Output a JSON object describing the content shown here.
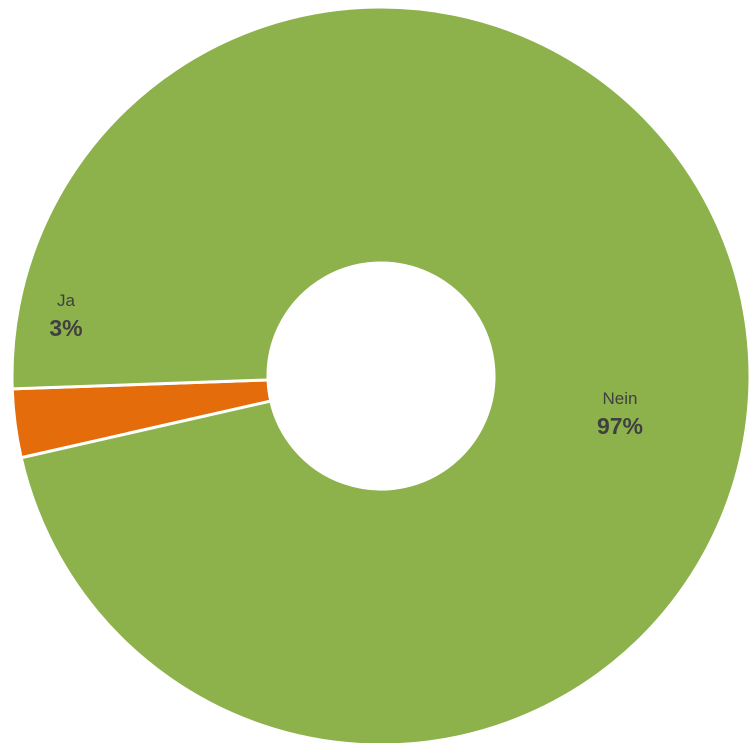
{
  "chart_data": {
    "type": "pie",
    "donut": true,
    "categories": [
      "Ja",
      "Nein"
    ],
    "values": [
      3,
      97
    ],
    "data_labels": [
      "3%",
      "97%"
    ],
    "colors": [
      "#e46c0a",
      "#8db14b"
    ],
    "title": "",
    "legend": "none"
  }
}
